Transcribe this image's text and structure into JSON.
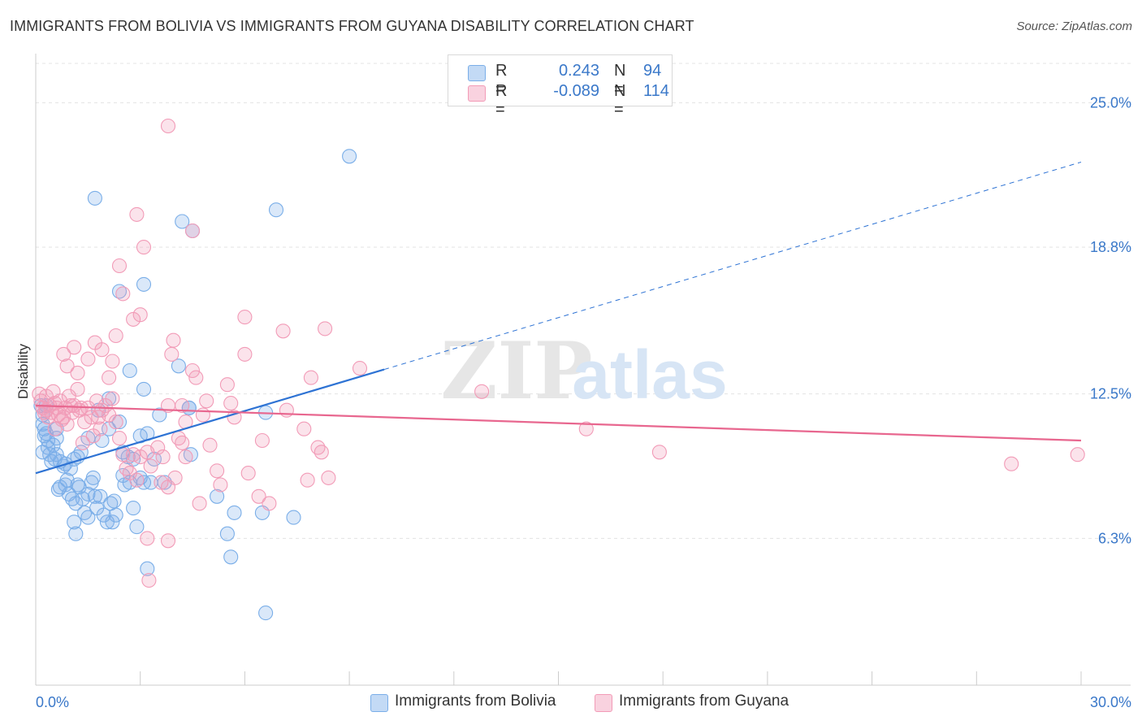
{
  "title": "IMMIGRANTS FROM BOLIVIA VS IMMIGRANTS FROM GUYANA DISABILITY CORRELATION CHART",
  "source": "Source: ZipAtlas.com",
  "watermark": "ZIPatlas",
  "legend_top": {
    "rows": [
      {
        "r_label": "R =",
        "r_value": "0.243",
        "n_label": "N =",
        "n_value": "94",
        "color": "#7aaee8"
      },
      {
        "r_label": "R =",
        "r_value": "-0.089",
        "n_label": "N =",
        "n_value": "114",
        "color": "#f29bb7"
      }
    ]
  },
  "legend_bottom": [
    {
      "label": "Immigrants from Bolivia",
      "color": "#7aaee8"
    },
    {
      "label": "Immigrants from Guyana",
      "color": "#f29bb7"
    }
  ],
  "chart_data": {
    "type": "scatter",
    "title": "IMMIGRANTS FROM BOLIVIA VS IMMIGRANTS FROM GUYANA DISABILITY CORRELATION CHART",
    "xlabel": "",
    "ylabel": "Disability",
    "xlim": [
      0,
      30
    ],
    "ylim": [
      0,
      27
    ],
    "x_tick_labels": [
      "0.0%",
      "30.0%"
    ],
    "y_ticks": [
      6.3,
      12.5,
      18.8,
      25.0
    ],
    "y_tick_labels": [
      "6.3%",
      "12.5%",
      "18.8%",
      "25.0%"
    ],
    "grid": true,
    "legend_position": "top-center",
    "series": [
      {
        "name": "Immigrants from Bolivia",
        "color": "#7aaee8",
        "line_color": "#2e73d4",
        "trend": {
          "x_start": 0,
          "y_start": 9.1,
          "x_solid_end": 10.0,
          "y_solid_end": 13.55,
          "x_end": 30.0,
          "y_end": 22.45
        },
        "points": [
          [
            0.15,
            12.0
          ],
          [
            0.2,
            11.6
          ],
          [
            0.2,
            11.2
          ],
          [
            0.25,
            11.0
          ],
          [
            0.25,
            10.7
          ],
          [
            0.3,
            10.8
          ],
          [
            0.3,
            12.0
          ],
          [
            0.35,
            10.5
          ],
          [
            0.2,
            10.0
          ],
          [
            0.35,
            10.2
          ],
          [
            0.4,
            9.9
          ],
          [
            0.45,
            9.6
          ],
          [
            0.5,
            10.3
          ],
          [
            0.55,
            9.7
          ],
          [
            0.6,
            9.9
          ],
          [
            0.6,
            10.6
          ],
          [
            0.7,
            9.6
          ],
          [
            0.8,
            9.4
          ],
          [
            0.85,
            9.5
          ],
          [
            0.9,
            8.8
          ],
          [
            1.0,
            9.3
          ],
          [
            1.1,
            9.7
          ],
          [
            1.2,
            9.8
          ],
          [
            1.2,
            8.6
          ],
          [
            0.7,
            8.5
          ],
          [
            0.65,
            8.4
          ],
          [
            0.85,
            8.6
          ],
          [
            0.95,
            8.2
          ],
          [
            1.05,
            8.0
          ],
          [
            1.15,
            7.8
          ],
          [
            1.25,
            8.5
          ],
          [
            1.35,
            8.0
          ],
          [
            1.4,
            7.4
          ],
          [
            1.5,
            7.2
          ],
          [
            1.6,
            8.7
          ],
          [
            1.65,
            8.9
          ],
          [
            1.5,
            8.2
          ],
          [
            1.7,
            8.1
          ],
          [
            1.75,
            7.6
          ],
          [
            1.85,
            8.1
          ],
          [
            1.95,
            7.3
          ],
          [
            2.05,
            7.0
          ],
          [
            2.15,
            7.8
          ],
          [
            2.2,
            7.0
          ],
          [
            2.25,
            7.9
          ],
          [
            2.3,
            7.3
          ],
          [
            1.1,
            7.0
          ],
          [
            1.15,
            6.5
          ],
          [
            2.5,
            9.0
          ],
          [
            2.55,
            8.6
          ],
          [
            2.7,
            8.7
          ],
          [
            2.8,
            7.6
          ],
          [
            2.9,
            6.8
          ],
          [
            3.0,
            8.9
          ],
          [
            3.1,
            8.7
          ],
          [
            3.3,
            8.7
          ],
          [
            2.5,
            10.0
          ],
          [
            2.65,
            9.8
          ],
          [
            2.8,
            9.7
          ],
          [
            3.0,
            10.7
          ],
          [
            3.2,
            10.8
          ],
          [
            3.4,
            9.7
          ],
          [
            3.55,
            11.6
          ],
          [
            3.7,
            8.7
          ],
          [
            1.3,
            10.0
          ],
          [
            1.5,
            10.6
          ],
          [
            1.9,
            10.5
          ],
          [
            1.8,
            11.8
          ],
          [
            2.1,
            11.0
          ],
          [
            2.1,
            12.3
          ],
          [
            2.4,
            11.3
          ],
          [
            2.7,
            13.5
          ],
          [
            3.1,
            12.7
          ],
          [
            4.4,
            11.9
          ],
          [
            4.45,
            9.9
          ],
          [
            5.2,
            8.1
          ],
          [
            5.5,
            6.5
          ],
          [
            5.6,
            5.5
          ],
          [
            5.7,
            7.4
          ],
          [
            6.5,
            7.4
          ],
          [
            6.6,
            11.7
          ],
          [
            7.4,
            7.2
          ],
          [
            4.1,
            13.7
          ],
          [
            4.2,
            19.9
          ],
          [
            4.5,
            19.5
          ],
          [
            2.4,
            16.9
          ],
          [
            3.1,
            17.2
          ],
          [
            1.7,
            20.9
          ],
          [
            6.9,
            20.4
          ],
          [
            9.0,
            22.7
          ],
          [
            4.4,
            11.9
          ],
          [
            6.6,
            3.1
          ],
          [
            3.2,
            5.0
          ],
          [
            0.6,
            11.0
          ]
        ]
      },
      {
        "name": "Immigrants from Guyana",
        "color": "#f29bb7",
        "line_color": "#e8678f",
        "trend": {
          "x_start": 0,
          "y_start": 12.0,
          "x_end": 30.0,
          "y_end": 10.5
        },
        "points": [
          [
            0.1,
            12.5
          ],
          [
            0.15,
            12.2
          ],
          [
            0.2,
            11.9
          ],
          [
            0.25,
            11.7
          ],
          [
            0.3,
            11.8
          ],
          [
            0.35,
            11.5
          ],
          [
            0.4,
            12.0
          ],
          [
            0.45,
            11.7
          ],
          [
            0.5,
            12.6
          ],
          [
            0.55,
            12.1
          ],
          [
            0.6,
            11.9
          ],
          [
            0.65,
            11.6
          ],
          [
            0.7,
            12.2
          ],
          [
            0.75,
            11.4
          ],
          [
            0.8,
            11.5
          ],
          [
            0.85,
            11.9
          ],
          [
            0.9,
            11.2
          ],
          [
            0.95,
            12.4
          ],
          [
            1.0,
            12.0
          ],
          [
            1.05,
            11.7
          ],
          [
            1.1,
            12.0
          ],
          [
            1.2,
            12.7
          ],
          [
            1.25,
            11.8
          ],
          [
            1.3,
            11.9
          ],
          [
            1.4,
            11.3
          ],
          [
            1.5,
            11.9
          ],
          [
            1.6,
            11.5
          ],
          [
            1.65,
            10.7
          ],
          [
            1.75,
            12.2
          ],
          [
            1.8,
            11.5
          ],
          [
            1.85,
            11.0
          ],
          [
            1.9,
            11.8
          ],
          [
            2.0,
            12.0
          ],
          [
            2.1,
            11.6
          ],
          [
            2.2,
            12.3
          ],
          [
            2.3,
            11.3
          ],
          [
            2.4,
            10.6
          ],
          [
            2.5,
            9.9
          ],
          [
            2.6,
            9.3
          ],
          [
            2.7,
            9.1
          ],
          [
            2.8,
            9.9
          ],
          [
            2.9,
            8.8
          ],
          [
            3.0,
            9.8
          ],
          [
            3.2,
            10.0
          ],
          [
            3.3,
            9.4
          ],
          [
            3.5,
            10.2
          ],
          [
            3.6,
            8.7
          ],
          [
            3.8,
            8.5
          ],
          [
            4.0,
            8.9
          ],
          [
            4.1,
            10.6
          ],
          [
            4.2,
            12.0
          ],
          [
            4.3,
            11.3
          ],
          [
            4.5,
            13.5
          ],
          [
            4.6,
            13.2
          ],
          [
            4.8,
            11.6
          ],
          [
            4.9,
            12.2
          ],
          [
            5.0,
            10.3
          ],
          [
            5.2,
            9.2
          ],
          [
            5.3,
            8.6
          ],
          [
            5.5,
            12.9
          ],
          [
            5.7,
            11.5
          ],
          [
            6.0,
            14.2
          ],
          [
            6.0,
            15.8
          ],
          [
            6.1,
            9.1
          ],
          [
            6.4,
            8.1
          ],
          [
            6.5,
            10.5
          ],
          [
            6.7,
            7.8
          ],
          [
            7.1,
            15.2
          ],
          [
            7.2,
            11.8
          ],
          [
            7.7,
            11.0
          ],
          [
            7.8,
            8.8
          ],
          [
            8.1,
            10.2
          ],
          [
            8.2,
            10.0
          ],
          [
            8.3,
            15.3
          ],
          [
            8.4,
            8.9
          ],
          [
            7.9,
            13.2
          ],
          [
            0.9,
            13.7
          ],
          [
            1.1,
            14.5
          ],
          [
            1.5,
            14.0
          ],
          [
            1.7,
            14.7
          ],
          [
            1.9,
            14.4
          ],
          [
            2.1,
            13.2
          ],
          [
            2.3,
            15.0
          ],
          [
            2.5,
            16.8
          ],
          [
            2.8,
            15.7
          ],
          [
            3.0,
            15.9
          ],
          [
            3.9,
            14.2
          ],
          [
            3.95,
            14.8
          ],
          [
            3.8,
            12.0
          ],
          [
            2.2,
            13.9
          ],
          [
            1.2,
            13.4
          ],
          [
            0.8,
            14.2
          ],
          [
            2.9,
            20.2
          ],
          [
            3.1,
            18.8
          ],
          [
            2.4,
            18.0
          ],
          [
            3.8,
            24.0
          ],
          [
            4.5,
            19.5
          ],
          [
            3.2,
            6.3
          ],
          [
            3.25,
            4.5
          ],
          [
            4.2,
            10.4
          ],
          [
            5.6,
            12.1
          ],
          [
            9.3,
            13.6
          ],
          [
            12.8,
            12.6
          ],
          [
            15.8,
            11.0
          ],
          [
            17.9,
            10.0
          ],
          [
            28.0,
            9.5
          ],
          [
            29.9,
            9.9
          ],
          [
            3.65,
            9.8
          ],
          [
            4.3,
            9.8
          ],
          [
            1.35,
            10.4
          ],
          [
            0.3,
            12.4
          ],
          [
            0.55,
            11.0
          ],
          [
            4.7,
            7.8
          ],
          [
            3.8,
            6.2
          ]
        ]
      }
    ]
  }
}
